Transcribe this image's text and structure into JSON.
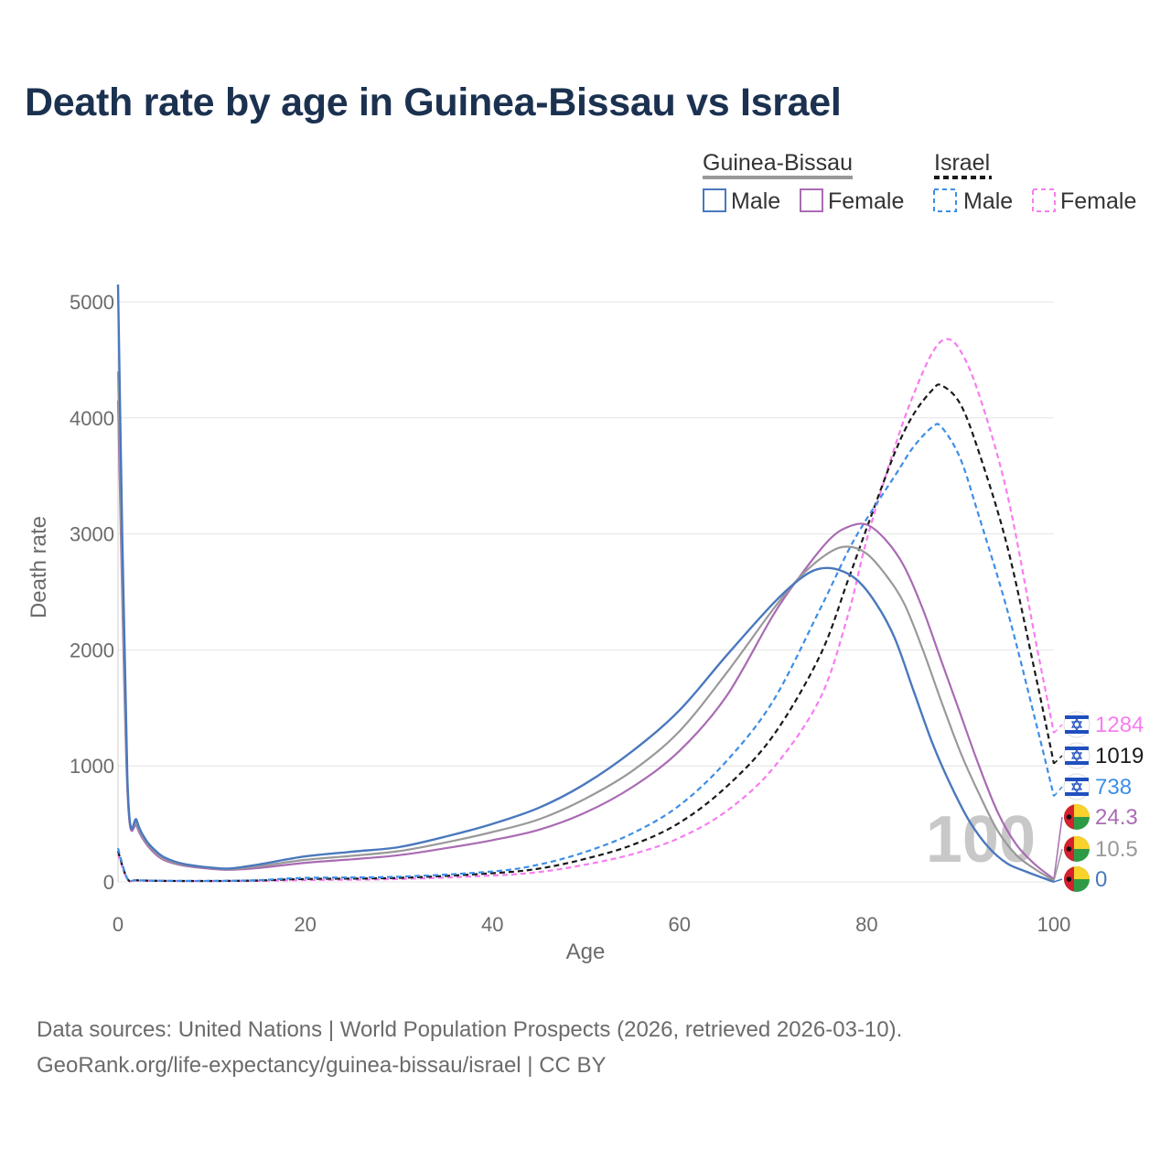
{
  "title": "Death rate by age in Guinea-Bissau vs Israel",
  "source_line1": "Data sources: United Nations | World Population Prospects (2026, retrieved 2026-03-10).",
  "source_line2": "GeoRank.org/life-expectancy/guinea-bissau/israel | CC BY",
  "legend": {
    "group1": "Guinea-Bissau",
    "group2": "Israel",
    "male": "Male",
    "female": "Female"
  },
  "colors": {
    "gb_male": "#4a78bd",
    "gb_female": "#a96bb3",
    "gb_total": "#999999",
    "il_male": "#3d8ee6",
    "il_female": "#f77df0",
    "il_total": "#1a1a1a"
  },
  "flags": {
    "israel": "israel-flag-icon",
    "guinea_bissau": "guinea-bissau-flag-icon"
  },
  "chart_data": {
    "type": "line",
    "xlabel": "Age",
    "ylabel": "Death rate",
    "xlim": [
      0,
      100
    ],
    "ylim": [
      0,
      5000
    ],
    "xticks": [
      "0",
      "20",
      "40",
      "60",
      "80",
      "100"
    ],
    "yticks": [
      "0",
      "1000",
      "2000",
      "3000",
      "4000",
      "5000"
    ],
    "watermark": "100",
    "series": [
      {
        "name": "Israel Female",
        "key": "il_female",
        "dashed": true,
        "points": [
          [
            0,
            240
          ],
          [
            1,
            25
          ],
          [
            2,
            12
          ],
          [
            5,
            8
          ],
          [
            10,
            7
          ],
          [
            15,
            9
          ],
          [
            20,
            16
          ],
          [
            30,
            25
          ],
          [
            40,
            55
          ],
          [
            45,
            85
          ],
          [
            50,
            150
          ],
          [
            55,
            240
          ],
          [
            60,
            380
          ],
          [
            65,
            610
          ],
          [
            70,
            980
          ],
          [
            75,
            1580
          ],
          [
            78,
            2300
          ],
          [
            80,
            2950
          ],
          [
            83,
            3750
          ],
          [
            85,
            4200
          ],
          [
            87,
            4560
          ],
          [
            88.5,
            4680
          ],
          [
            90,
            4580
          ],
          [
            92,
            4200
          ],
          [
            95,
            3350
          ],
          [
            98,
            2100
          ],
          [
            100,
            1284
          ]
        ],
        "end_label": "1284"
      },
      {
        "name": "Israel Total",
        "key": "il_total",
        "dashed": true,
        "points": [
          [
            0,
            265
          ],
          [
            1,
            28
          ],
          [
            2,
            14
          ],
          [
            5,
            9
          ],
          [
            10,
            8
          ],
          [
            15,
            12
          ],
          [
            20,
            25
          ],
          [
            30,
            35
          ],
          [
            40,
            75
          ],
          [
            45,
            115
          ],
          [
            50,
            200
          ],
          [
            55,
            320
          ],
          [
            60,
            510
          ],
          [
            65,
            820
          ],
          [
            70,
            1260
          ],
          [
            75,
            1950
          ],
          [
            78,
            2600
          ],
          [
            80,
            3050
          ],
          [
            83,
            3700
          ],
          [
            85,
            4030
          ],
          [
            87,
            4240
          ],
          [
            88,
            4280
          ],
          [
            90,
            4120
          ],
          [
            92,
            3700
          ],
          [
            95,
            2900
          ],
          [
            98,
            1800
          ],
          [
            100,
            1019
          ]
        ],
        "end_label": "1019"
      },
      {
        "name": "Israel Male",
        "key": "il_male",
        "dashed": true,
        "points": [
          [
            0,
            290
          ],
          [
            1,
            30
          ],
          [
            2,
            15
          ],
          [
            5,
            10
          ],
          [
            10,
            9
          ],
          [
            15,
            15
          ],
          [
            20,
            35
          ],
          [
            30,
            45
          ],
          [
            40,
            90
          ],
          [
            45,
            150
          ],
          [
            50,
            260
          ],
          [
            55,
            420
          ],
          [
            60,
            660
          ],
          [
            65,
            1040
          ],
          [
            70,
            1560
          ],
          [
            75,
            2350
          ],
          [
            78,
            2850
          ],
          [
            80,
            3130
          ],
          [
            83,
            3500
          ],
          [
            85,
            3750
          ],
          [
            87,
            3920
          ],
          [
            88,
            3920
          ],
          [
            90,
            3650
          ],
          [
            92,
            3150
          ],
          [
            95,
            2350
          ],
          [
            98,
            1400
          ],
          [
            100,
            738
          ]
        ],
        "end_label": "738"
      },
      {
        "name": "Guinea-Bissau Female",
        "key": "gb_female",
        "dashed": false,
        "points": [
          [
            0,
            4150
          ],
          [
            1,
            800
          ],
          [
            2,
            480
          ],
          [
            3,
            330
          ],
          [
            4,
            240
          ],
          [
            5,
            185
          ],
          [
            7,
            140
          ],
          [
            10,
            112
          ],
          [
            12,
            104
          ],
          [
            15,
            120
          ],
          [
            20,
            165
          ],
          [
            25,
            195
          ],
          [
            30,
            230
          ],
          [
            35,
            290
          ],
          [
            40,
            360
          ],
          [
            45,
            450
          ],
          [
            50,
            600
          ],
          [
            55,
            820
          ],
          [
            60,
            1130
          ],
          [
            65,
            1600
          ],
          [
            70,
            2300
          ],
          [
            73,
            2650
          ],
          [
            76,
            2950
          ],
          [
            78,
            3060
          ],
          [
            80,
            3080
          ],
          [
            82,
            2950
          ],
          [
            84,
            2720
          ],
          [
            86,
            2350
          ],
          [
            88,
            1900
          ],
          [
            90,
            1450
          ],
          [
            92,
            1000
          ],
          [
            94,
            600
          ],
          [
            96,
            320
          ],
          [
            98,
            150
          ],
          [
            100,
            24.3
          ]
        ],
        "end_label": "24.3"
      },
      {
        "name": "Guinea-Bissau Total",
        "key": "gb_total",
        "dashed": false,
        "points": [
          [
            0,
            4400
          ],
          [
            1,
            850
          ],
          [
            2,
            500
          ],
          [
            3,
            345
          ],
          [
            4,
            255
          ],
          [
            5,
            195
          ],
          [
            7,
            148
          ],
          [
            10,
            118
          ],
          [
            12,
            110
          ],
          [
            15,
            135
          ],
          [
            20,
            190
          ],
          [
            25,
            225
          ],
          [
            30,
            265
          ],
          [
            35,
            340
          ],
          [
            40,
            430
          ],
          [
            45,
            540
          ],
          [
            50,
            720
          ],
          [
            55,
            960
          ],
          [
            60,
            1300
          ],
          [
            65,
            1800
          ],
          [
            70,
            2350
          ],
          [
            73,
            2640
          ],
          [
            76,
            2840
          ],
          [
            78,
            2890
          ],
          [
            80,
            2830
          ],
          [
            82,
            2650
          ],
          [
            84,
            2400
          ],
          [
            86,
            2000
          ],
          [
            88,
            1550
          ],
          [
            90,
            1120
          ],
          [
            92,
            760
          ],
          [
            94,
            440
          ],
          [
            96,
            230
          ],
          [
            98,
            110
          ],
          [
            100,
            10.5
          ]
        ],
        "end_label": "10.5"
      },
      {
        "name": "Guinea-Bissau Male",
        "key": "gb_male",
        "dashed": false,
        "points": [
          [
            0,
            5150
          ],
          [
            1,
            900
          ],
          [
            2,
            530
          ],
          [
            3,
            360
          ],
          [
            4,
            270
          ],
          [
            5,
            210
          ],
          [
            7,
            155
          ],
          [
            10,
            123
          ],
          [
            12,
            116
          ],
          [
            15,
            150
          ],
          [
            20,
            220
          ],
          [
            25,
            260
          ],
          [
            30,
            300
          ],
          [
            35,
            390
          ],
          [
            40,
            500
          ],
          [
            45,
            640
          ],
          [
            50,
            850
          ],
          [
            55,
            1130
          ],
          [
            60,
            1480
          ],
          [
            65,
            1950
          ],
          [
            70,
            2400
          ],
          [
            73,
            2620
          ],
          [
            75,
            2700
          ],
          [
            77,
            2690
          ],
          [
            79,
            2600
          ],
          [
            81,
            2400
          ],
          [
            83,
            2100
          ],
          [
            85,
            1650
          ],
          [
            87,
            1200
          ],
          [
            89,
            830
          ],
          [
            91,
            520
          ],
          [
            93,
            300
          ],
          [
            95,
            160
          ],
          [
            97,
            90
          ],
          [
            100,
            0
          ]
        ],
        "end_label": "0"
      }
    ]
  }
}
